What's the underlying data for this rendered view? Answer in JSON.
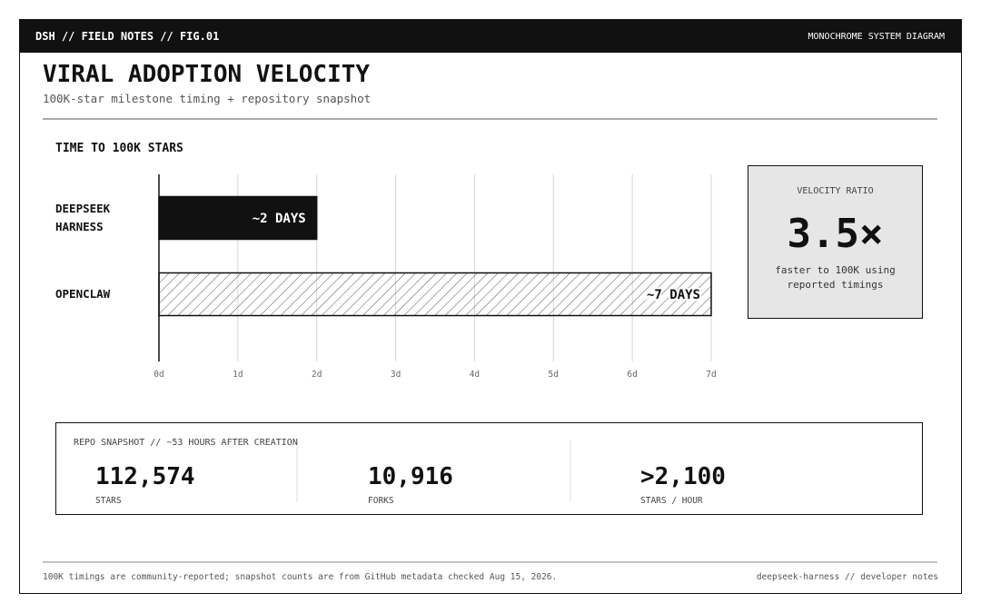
{
  "header": {
    "left": "DSH // FIELD NOTES // FIG.01",
    "right": "MONOCHROME SYSTEM DIAGRAM"
  },
  "title": "VIRAL ADOPTION VELOCITY",
  "subtitle": "100K-star milestone timing + repository snapshot",
  "chart_data": {
    "type": "hbar",
    "title": "TIME TO 100K STARS",
    "categories": [
      "DEEPSEEK HARNESS",
      "OPENCLAW"
    ],
    "values": [
      2,
      7
    ],
    "value_labels": [
      "~2 DAYS",
      "~7 DAYS"
    ],
    "fills": [
      "solid",
      "hatch"
    ],
    "color": "#111111",
    "xlim": [
      0,
      7
    ],
    "xticks": [
      {
        "value": 0,
        "label": "0d"
      },
      {
        "value": 1,
        "label": "1d"
      },
      {
        "value": 2,
        "label": "2d"
      },
      {
        "value": 3,
        "label": "3d"
      },
      {
        "value": 4,
        "label": "4d"
      },
      {
        "value": 5,
        "label": "5d"
      },
      {
        "value": 6,
        "label": "6d"
      },
      {
        "value": 7,
        "label": "7d"
      }
    ],
    "grid": true
  },
  "ratio_panel": {
    "label": "VELOCITY RATIO",
    "value": "3.5×",
    "caption": "faster to 100K using reported timings"
  },
  "snapshot": {
    "title": "REPO SNAPSHOT // ~53 HOURS AFTER CREATION",
    "stats": [
      {
        "value": "112,574",
        "label": "STARS"
      },
      {
        "value": "10,916",
        "label": "FORKS"
      },
      {
        "value": ">2,100",
        "label": "STARS / HOUR"
      }
    ]
  },
  "footer": {
    "left": "100K timings are community-reported; snapshot counts are from GitHub metadata checked Aug 15, 2026.",
    "right": "deepseek-harness // developer notes"
  }
}
